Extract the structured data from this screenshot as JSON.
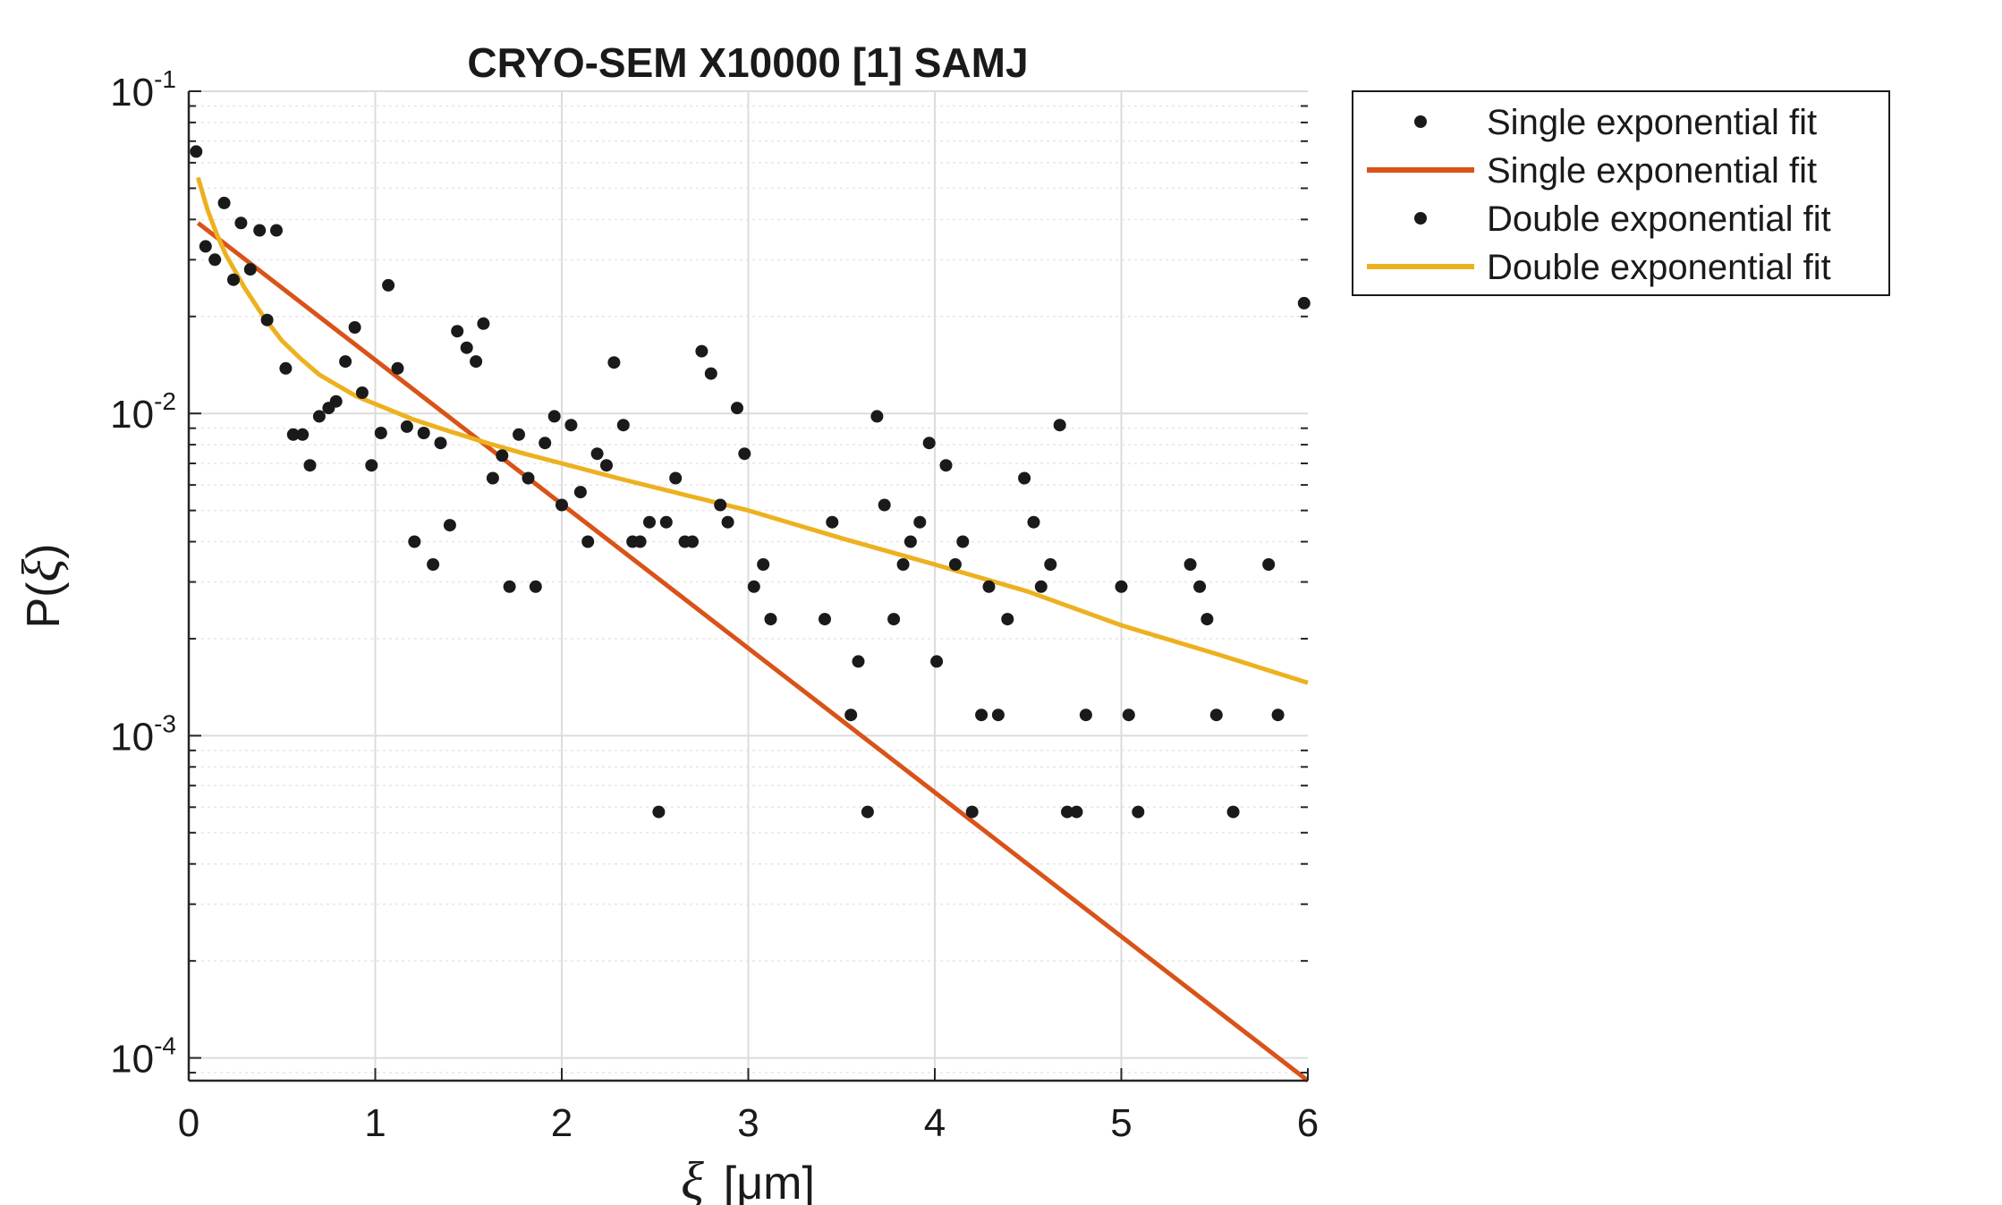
{
  "chart_data": {
    "type": "scatter",
    "title": "CRYO-SEM X10000 [1] SAMJ",
    "xlabel": {
      "symbol": "ξ",
      "unit": "[μm]"
    },
    "ylabel": {
      "prefix": "P(",
      "symbol": "ξ",
      "suffix": ")"
    },
    "xlim": [
      0,
      6
    ],
    "ylim": [
      8.5e-05,
      0.1
    ],
    "yscale": "log",
    "grid": true,
    "legend_position": "outside-top-right",
    "x_ticks": [
      "0",
      "1",
      "2",
      "3",
      "4",
      "5",
      "6"
    ],
    "y_ticks": [
      {
        "base": "10",
        "exp": "-4"
      },
      {
        "base": "10",
        "exp": "-3"
      },
      {
        "base": "10",
        "exp": "-2"
      },
      {
        "base": "10",
        "exp": "-1"
      }
    ],
    "series": [
      {
        "name": "Single exponential fit",
        "kind": "points",
        "color": "#1a1a1a",
        "x": [
          0.04,
          0.09,
          0.14,
          0.19,
          0.24,
          0.28,
          0.33,
          0.38,
          0.42,
          0.47,
          0.52,
          0.56,
          0.61,
          0.65,
          0.7,
          0.75,
          0.79,
          0.84,
          0.89,
          0.93,
          0.98,
          1.03,
          1.07,
          1.12,
          1.17,
          1.21,
          1.26,
          1.31,
          1.35,
          1.4,
          1.44,
          1.49,
          1.54,
          1.58,
          1.63,
          1.68,
          1.72,
          1.77,
          1.82,
          1.86,
          1.91,
          1.96,
          2.0,
          2.05,
          2.1,
          2.14,
          2.19,
          2.24,
          2.28,
          2.33,
          2.38,
          2.42,
          2.47,
          2.52,
          2.56,
          2.61,
          2.66,
          2.7,
          2.75,
          2.8,
          2.85,
          2.89,
          2.94,
          2.98,
          3.03,
          3.08,
          3.12,
          3.41,
          3.45,
          3.55,
          3.59,
          3.64,
          3.69,
          3.73,
          3.78,
          3.83,
          3.87,
          3.92,
          3.97,
          4.01,
          4.06,
          4.11,
          4.15,
          4.2,
          4.25,
          4.29,
          4.34,
          4.39,
          4.48,
          4.53,
          4.57,
          4.62,
          4.67,
          4.71,
          4.76,
          4.81,
          5.0,
          5.04,
          5.09,
          5.37,
          5.42,
          5.46,
          5.51,
          5.6,
          5.79,
          5.84,
          5.98
        ],
        "y": [
          0.065,
          0.033,
          0.03,
          0.045,
          0.026,
          0.039,
          0.028,
          0.037,
          0.0195,
          0.037,
          0.0138,
          0.0086,
          0.0086,
          0.0069,
          0.0098,
          0.0104,
          0.0109,
          0.0145,
          0.0185,
          0.0116,
          0.0069,
          0.0087,
          0.025,
          0.0138,
          0.0091,
          0.004,
          0.0087,
          0.0034,
          0.0081,
          0.0045,
          0.018,
          0.016,
          0.0145,
          0.019,
          0.0063,
          0.0074,
          0.0029,
          0.0086,
          0.0063,
          0.0029,
          0.0081,
          0.0098,
          0.0052,
          0.0092,
          0.0057,
          0.004,
          0.0075,
          0.0069,
          0.0144,
          0.0092,
          0.004,
          0.004,
          0.0046,
          0.00058,
          0.0046,
          0.0063,
          0.004,
          0.004,
          0.0156,
          0.0133,
          0.0052,
          0.0046,
          0.0104,
          0.0075,
          0.0029,
          0.0034,
          0.0023,
          0.0023,
          0.0046,
          0.00116,
          0.0017,
          0.00058,
          0.0098,
          0.0052,
          0.0023,
          0.0034,
          0.004,
          0.0046,
          0.0081,
          0.0017,
          0.0069,
          0.0034,
          0.004,
          0.00058,
          0.00116,
          0.0029,
          0.00116,
          0.0023,
          0.0063,
          0.0046,
          0.0029,
          0.0034,
          0.0092,
          0.00058,
          0.00058,
          0.00116,
          0.0029,
          0.00116,
          0.00058,
          0.0034,
          0.0029,
          0.0023,
          0.00116,
          0.00058,
          0.0034,
          0.00116,
          0.022
        ]
      },
      {
        "name": "Single exponential fit",
        "kind": "line",
        "color": "#d95319",
        "x": [
          0.05,
          6.0
        ],
        "y": [
          0.039,
          8.5e-05
        ]
      },
      {
        "name": "Double exponential fit",
        "kind": "points",
        "color": "#1a1a1a",
        "x": [],
        "y": []
      },
      {
        "name": "Double exponential fit",
        "kind": "line",
        "color": "#edb120",
        "x": [
          0.05,
          0.1,
          0.15,
          0.2,
          0.3,
          0.4,
          0.5,
          0.6,
          0.7,
          0.8,
          0.9,
          1.0,
          1.2,
          1.4,
          1.6,
          1.8,
          2.0,
          2.3,
          2.6,
          3.0,
          3.5,
          4.0,
          4.5,
          5.0,
          5.5,
          6.0
        ],
        "y": [
          0.054,
          0.043,
          0.036,
          0.031,
          0.0245,
          0.02,
          0.0168,
          0.0148,
          0.0132,
          0.0122,
          0.0113,
          0.0107,
          0.0096,
          0.0088,
          0.0081,
          0.0075,
          0.007,
          0.0063,
          0.0057,
          0.005,
          0.0041,
          0.0034,
          0.0028,
          0.0022,
          0.0018,
          0.00146
        ]
      }
    ]
  }
}
